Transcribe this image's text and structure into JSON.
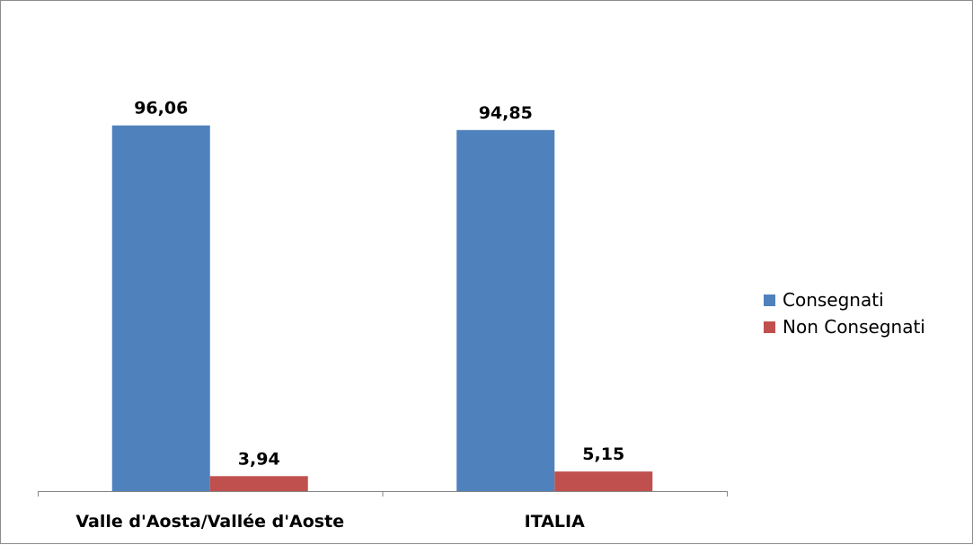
{
  "chart_data": {
    "type": "bar",
    "categories": [
      "Valle d'Aosta/Vallée d'Aoste",
      "ITALIA"
    ],
    "series": [
      {
        "name": "Consegnati",
        "color": "#4f81bd",
        "values": [
          96.06,
          94.85
        ],
        "labels": [
          "96,06",
          "94,85"
        ]
      },
      {
        "name": "Non Consegnati",
        "color": "#c0504d",
        "values": [
          3.94,
          5.15
        ],
        "labels": [
          "3,94",
          "5,15"
        ]
      }
    ],
    "ylim": [
      0,
      100
    ],
    "grid": false,
    "legend_position": "right"
  }
}
